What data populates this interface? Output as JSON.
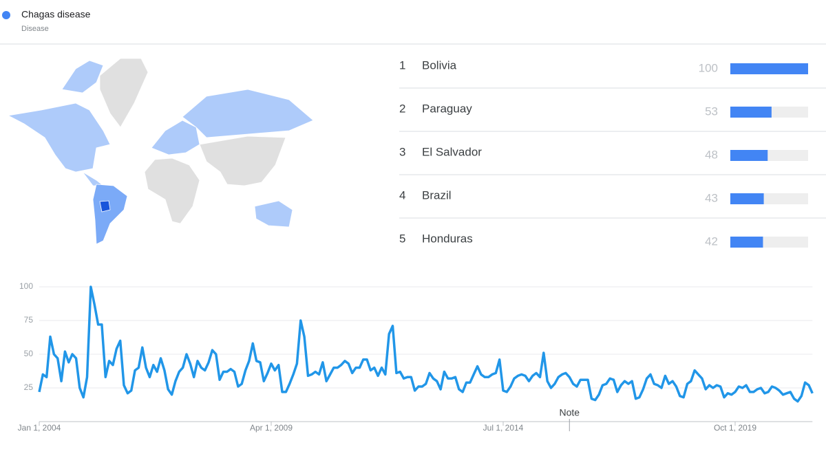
{
  "header": {
    "title": "Chagas disease",
    "subtitle": "Disease"
  },
  "ranking": [
    {
      "rank": "1",
      "name": "Bolivia",
      "value": 100
    },
    {
      "rank": "2",
      "name": "Paraguay",
      "value": 53
    },
    {
      "rank": "3",
      "name": "El Salvador",
      "value": 48
    },
    {
      "rank": "4",
      "name": "Brazil",
      "value": 43
    },
    {
      "rank": "5",
      "name": "Honduras",
      "value": 42
    }
  ],
  "ranking_color": "#4285f4",
  "chart_data": {
    "type": "line",
    "color": "#2196e8",
    "ylim": [
      0,
      100
    ],
    "yticks": [
      25,
      50,
      75,
      100
    ],
    "grid": true,
    "xticks": [
      {
        "value": "2004-01-01",
        "label": "Jan 1, 2004"
      },
      {
        "value": "2009-04-01",
        "label": "Apr 1, 2009"
      },
      {
        "value": "2014-07-01",
        "label": "Jul 1, 2014"
      },
      {
        "value": "2019-10-01",
        "label": "Oct 1, 2019"
      }
    ],
    "annotations": [
      {
        "text": "Note",
        "x": "2016-01-01"
      }
    ],
    "start": "2004-01-01",
    "values": [
      22,
      35,
      33,
      63,
      50,
      47,
      30,
      52,
      44,
      50,
      47,
      25,
      18,
      33,
      100,
      87,
      72,
      72,
      33,
      45,
      42,
      54,
      60,
      27,
      21,
      23,
      38,
      40,
      55,
      40,
      33,
      42,
      37,
      47,
      38,
      24,
      20,
      30,
      37,
      40,
      50,
      43,
      33,
      45,
      40,
      38,
      44,
      53,
      50,
      31,
      37,
      37,
      39,
      37,
      26,
      28,
      38,
      45,
      58,
      45,
      44,
      30,
      36,
      43,
      38,
      42,
      22,
      22,
      28,
      35,
      43,
      75,
      63,
      34,
      35,
      37,
      35,
      44,
      30,
      35,
      40,
      40,
      42,
      45,
      43,
      36,
      40,
      40,
      46,
      46,
      38,
      40,
      34,
      40,
      35,
      65,
      71,
      36,
      37,
      32,
      33,
      33,
      23,
      26,
      26,
      28,
      36,
      32,
      30,
      24,
      37,
      32,
      32,
      33,
      24,
      22,
      29,
      29,
      35,
      41,
      35,
      33,
      33,
      35,
      36,
      46,
      23,
      22,
      26,
      32,
      34,
      35,
      34,
      30,
      34,
      36,
      33,
      51,
      30,
      25,
      28,
      33,
      35,
      36,
      33,
      28,
      26,
      31,
      31,
      31,
      17,
      16,
      20,
      27,
      28,
      32,
      31,
      22,
      27,
      30,
      28,
      30,
      17,
      18,
      24,
      32,
      35,
      28,
      27,
      25,
      34,
      28,
      30,
      26,
      19,
      18,
      28,
      30,
      38,
      35,
      32,
      24,
      27,
      25,
      27,
      26,
      18,
      21,
      20,
      22,
      26,
      25,
      27,
      22,
      22,
      24,
      25,
      21,
      22,
      26,
      25,
      23,
      20,
      21,
      22,
      17,
      15,
      19,
      29,
      27,
      21
    ]
  }
}
